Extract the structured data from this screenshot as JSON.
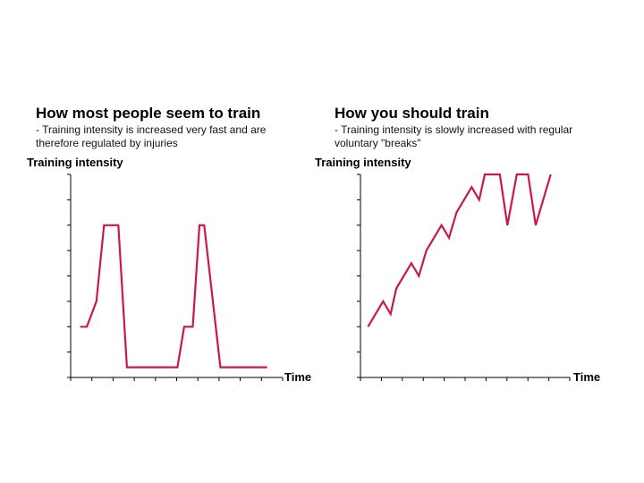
{
  "chart_data": [
    {
      "type": "line",
      "title": "How most people seem to train",
      "subtitle": "- Training intensity is increased very fast and are therefore regulated by injuries",
      "xlabel": "Time",
      "ylabel": "Training intensity",
      "xlim": [
        0,
        10
      ],
      "ylim": [
        0,
        8
      ],
      "x_ticks": 10,
      "y_ticks": 8,
      "grid": false,
      "color": "#c8194a",
      "series": [
        {
          "x": [
            0.5,
            0.85,
            1.35,
            1.75,
            2.5,
            2.95,
            4.3,
            5.6,
            5.95,
            6.4,
            6.75,
            7.0,
            7.85,
            10.3
          ],
          "y": [
            2.0,
            2.0,
            3.0,
            6.0,
            6.0,
            0.4,
            0.4,
            0.4,
            2.0,
            2.0,
            6.0,
            6.0,
            0.4,
            0.4
          ]
        }
      ]
    },
    {
      "type": "line",
      "title": "How you should train",
      "subtitle": "- Training intensity is slowly increased with regular voluntary \"breaks\"",
      "xlabel": "Time",
      "ylabel": "Training intensity",
      "xlim": [
        0,
        10
      ],
      "ylim": [
        0,
        8
      ],
      "x_ticks": 10,
      "y_ticks": 8,
      "grid": false,
      "color": "#c8194a",
      "series": [
        {
          "x": [
            0.4,
            1.2,
            1.6,
            1.9,
            2.7,
            3.1,
            3.5,
            4.3,
            4.7,
            5.1,
            5.9,
            6.3,
            6.6,
            7.4,
            7.8,
            8.3,
            8.9,
            9.3,
            10.1
          ],
          "y": [
            2.0,
            3.0,
            2.5,
            3.5,
            4.5,
            4.0,
            5.0,
            6.0,
            5.5,
            6.5,
            7.5,
            7.0,
            8.0,
            8.0,
            6.0,
            8.0,
            8.0,
            6.0,
            8.0
          ]
        }
      ]
    }
  ]
}
